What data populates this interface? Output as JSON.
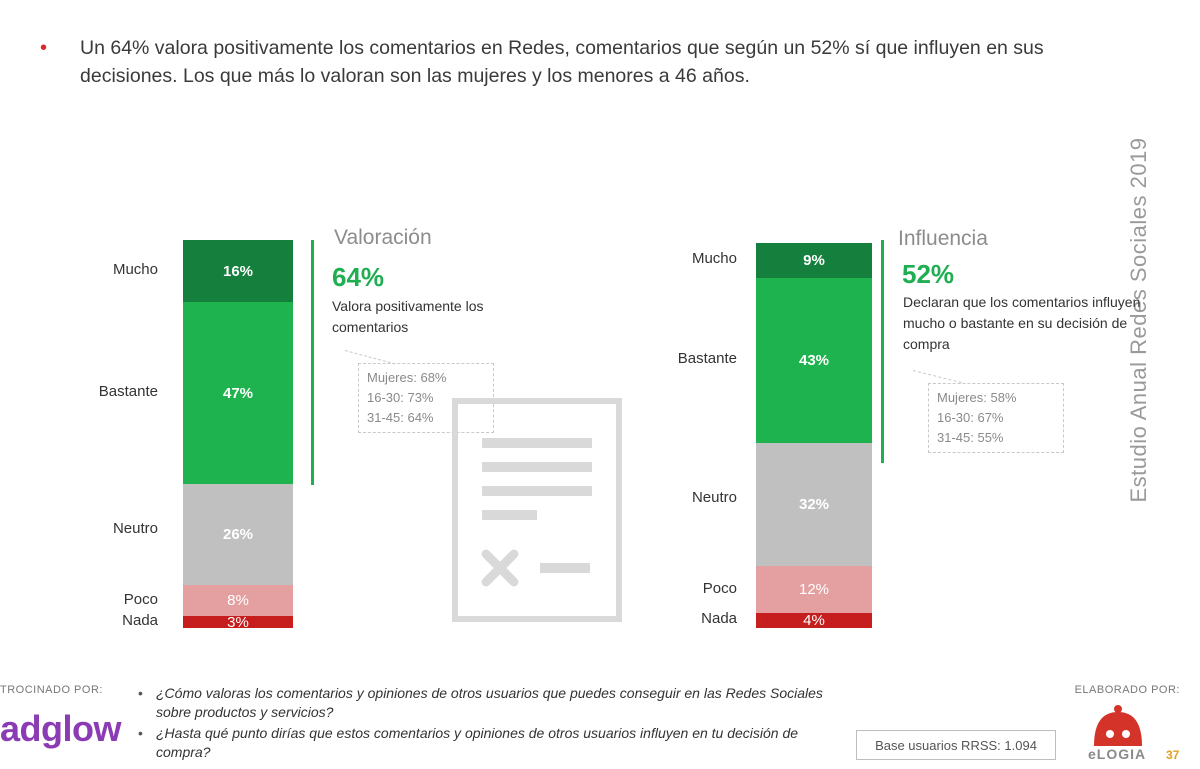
{
  "intro": {
    "bullet": "•",
    "text": "Un 64% valora positivamente los comentarios en Redes, comentarios que según un 52% sí que influyen en sus decisiones. Los que más lo valoran son las mujeres y los menores a 46 años."
  },
  "side_title": "Estudio Anual Redes Sociales 2019",
  "colors": {
    "mucho": "#15803d",
    "bastante": "#1fb34f",
    "neutro": "#c0c0c0",
    "poco": "#e39b9b",
    "nada": "#c41212",
    "accent": "#1fae52"
  },
  "chart_data": [
    {
      "type": "bar",
      "stacked": true,
      "title": "Valoración",
      "categories": [
        "Mucho",
        "Bastante",
        "Neutro",
        "Poco",
        "Nada"
      ],
      "values": [
        16,
        47,
        26,
        8,
        3
      ],
      "value_labels": [
        "16%",
        "47%",
        "26%",
        "8%",
        "3%"
      ],
      "highlight": {
        "value": "64%",
        "text": "Valora positivamente los comentarios"
      },
      "note": [
        "Mujeres: 68%",
        "16-30: 73%",
        "31-45: 64%"
      ]
    },
    {
      "type": "bar",
      "stacked": true,
      "title": "Influencia",
      "categories": [
        "Mucho",
        "Bastante",
        "Neutro",
        "Poco",
        "Nada"
      ],
      "values": [
        9,
        43,
        32,
        12,
        4
      ],
      "value_labels": [
        "9%",
        "43%",
        "32%",
        "12%",
        "4%"
      ],
      "highlight": {
        "value": "52%",
        "text": "Declaran que los comentarios influyen mucho o bastante en su decisión de compra"
      },
      "note": [
        "Mujeres: 58%",
        "16-30: 67%",
        "31-45: 55%"
      ]
    }
  ],
  "footer": {
    "sponsor_label": "TROCINADO POR:",
    "sponsor_brand": "adglow",
    "questions": [
      "¿Cómo valoras los comentarios y opiniones de otros usuarios que puedes conseguir en las Redes Sociales sobre productos y servicios?",
      "¿Hasta qué punto dirías que estos comentarios y opiniones de otros usuarios influyen en tu decisión de compra?"
    ],
    "made_label": "ELABORADO POR:",
    "base_text": "Base usuarios RRSS: 1.094",
    "made_brand": "eLOGIA",
    "page_number": "37"
  }
}
